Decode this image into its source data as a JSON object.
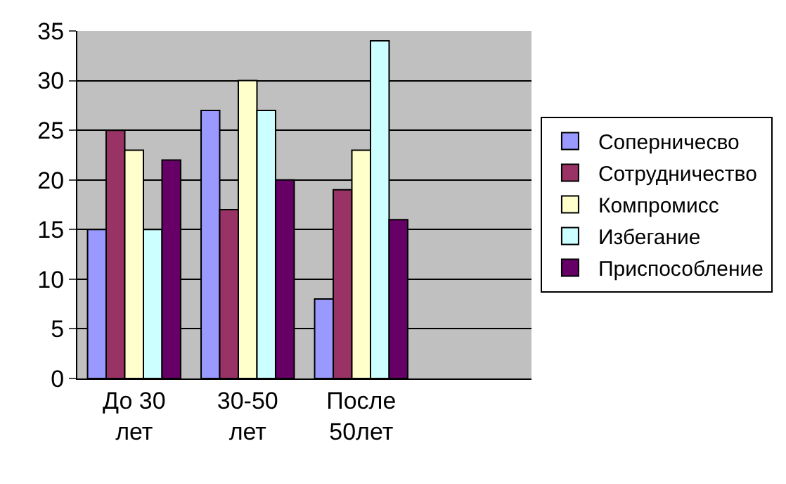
{
  "chart_data": {
    "type": "bar",
    "categories": [
      "До 30 лет",
      "30-50 лет",
      "После 50лет",
      null
    ],
    "series": [
      {
        "name": "Соперничесво",
        "color": "#9999ff",
        "values": [
          15,
          27,
          8,
          null
        ]
      },
      {
        "name": "Сотрудничество",
        "color": "#993366",
        "values": [
          25,
          17,
          19,
          null
        ]
      },
      {
        "name": "Компромисс",
        "color": "#ffffcc",
        "values": [
          23,
          30,
          23,
          null
        ]
      },
      {
        "name": "Избегание",
        "color": "#ccffff",
        "values": [
          15,
          27,
          34,
          null
        ]
      },
      {
        "name": "Приспособление",
        "color": "#660066",
        "values": [
          22,
          20,
          16,
          null
        ]
      }
    ],
    "ylim": [
      0,
      35
    ],
    "yticks": [
      0,
      5,
      10,
      15,
      20,
      25,
      30,
      35
    ],
    "grid": "y",
    "legend": "right"
  }
}
